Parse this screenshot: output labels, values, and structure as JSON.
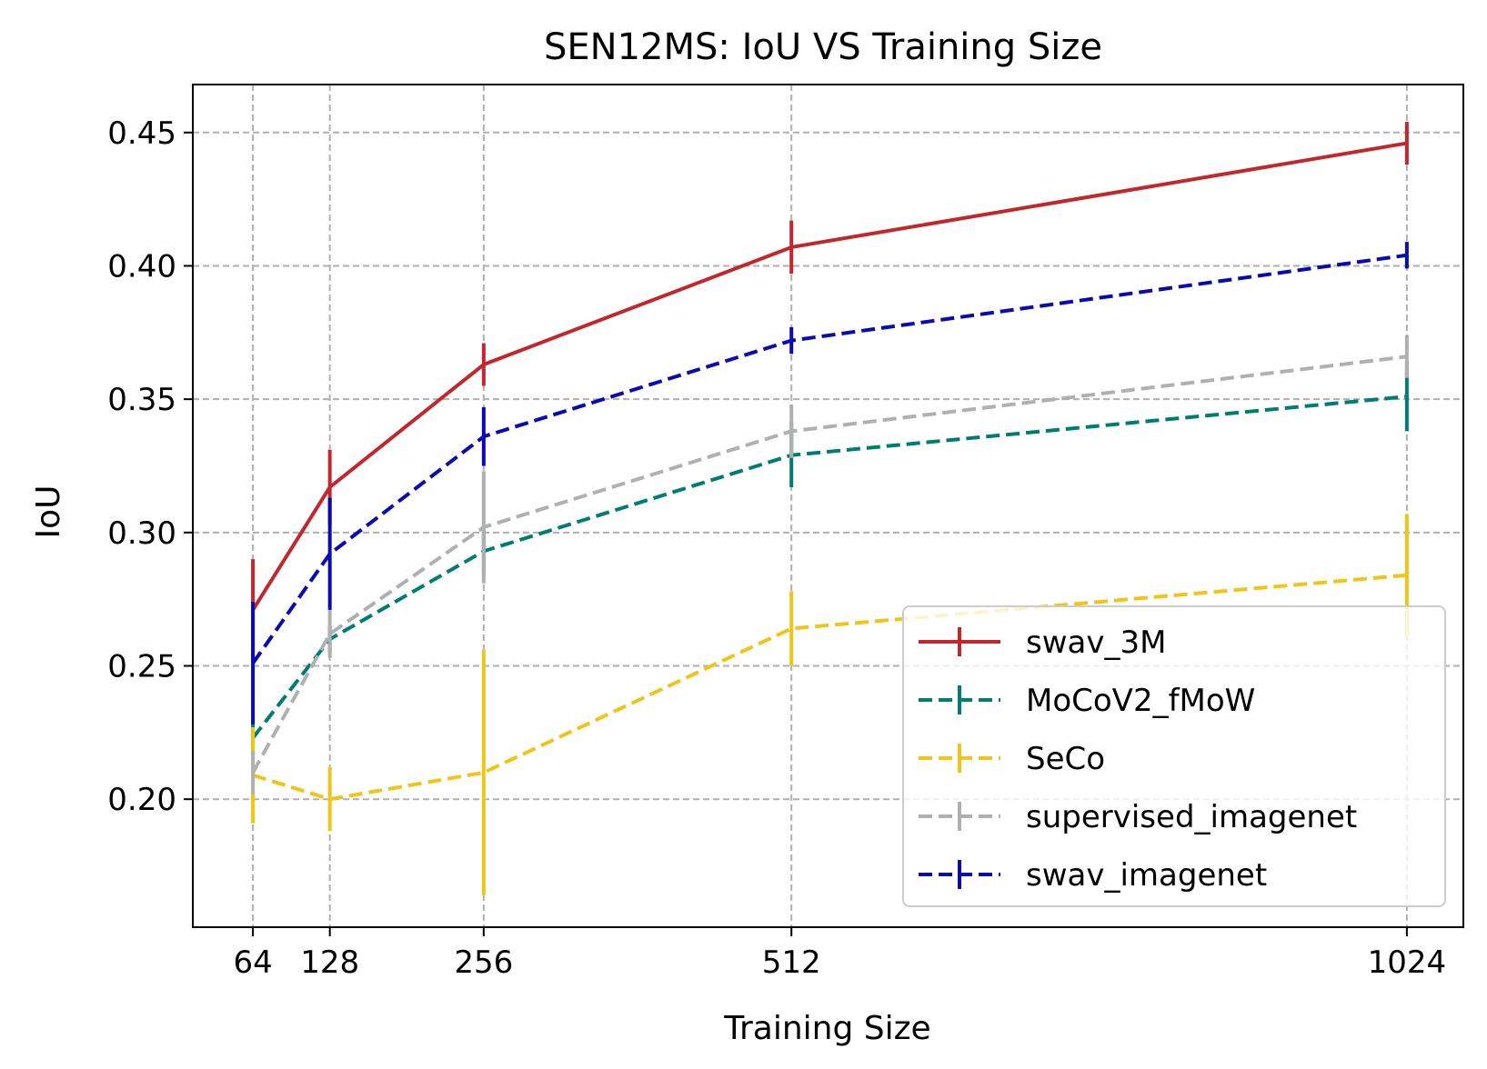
{
  "chart_data": {
    "type": "line",
    "title": "SEN12MS: IoU VS Training Size",
    "xlabel": "Training Size",
    "ylabel": "IoU",
    "x": [
      64,
      128,
      256,
      512,
      1024
    ],
    "x_tick_labels": [
      "64",
      "128",
      "256",
      "512",
      "1024"
    ],
    "xlim": [
      14,
      1071
    ],
    "ylim": [
      0.152,
      0.468
    ],
    "y_ticks": [
      0.2,
      0.25,
      0.3,
      0.35,
      0.4,
      0.45
    ],
    "y_tick_labels": [
      "0.20",
      "0.25",
      "0.30",
      "0.35",
      "0.40",
      "0.45"
    ],
    "grid": true,
    "legend_position": "lower-right",
    "series": [
      {
        "name": "swav_3M",
        "color": "#c1272d",
        "linestyle": "solid",
        "values": [
          0.271,
          0.317,
          0.363,
          0.407,
          0.446
        ],
        "errors": [
          0.019,
          0.014,
          0.008,
          0.01,
          0.008
        ]
      },
      {
        "name": "MoCoV2_fMoW",
        "color": "#007d72",
        "linestyle": "dashed",
        "values": [
          0.223,
          0.26,
          0.293,
          0.329,
          0.351
        ],
        "errors": [
          0.006,
          0.005,
          0.008,
          0.012,
          0.013
        ]
      },
      {
        "name": "SeCo",
        "color": "#f0c419",
        "linestyle": "dashed",
        "values": [
          0.209,
          0.2,
          0.21,
          0.264,
          0.284
        ],
        "errors": [
          0.018,
          0.012,
          0.046,
          0.014,
          0.023
        ]
      },
      {
        "name": "supervised_imagenet",
        "color": "#b0b0b0",
        "linestyle": "dashed",
        "values": [
          0.21,
          0.262,
          0.302,
          0.338,
          0.366
        ],
        "errors": [
          0.008,
          0.009,
          0.021,
          0.01,
          0.008
        ]
      },
      {
        "name": "swav_imagenet",
        "color": "#0a0ab0",
        "linestyle": "dashed",
        "values": [
          0.251,
          0.292,
          0.336,
          0.372,
          0.404
        ],
        "errors": [
          0.023,
          0.021,
          0.011,
          0.005,
          0.005
        ]
      }
    ]
  }
}
